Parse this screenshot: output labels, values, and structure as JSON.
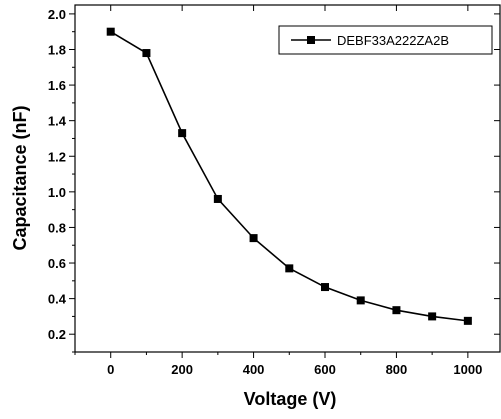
{
  "chart_data": {
    "type": "line",
    "title": "",
    "xlabel": "Voltage (V)",
    "ylabel": "Capacitance (nF)",
    "xlim": [
      -100,
      1090
    ],
    "ylim": [
      0.1,
      2.05
    ],
    "x_ticks": [
      "0",
      "200",
      "400",
      "600",
      "800",
      "1000"
    ],
    "y_ticks": [
      "0.2",
      "0.4",
      "0.6",
      "0.8",
      "1.0",
      "1.2",
      "1.4",
      "1.6",
      "1.8",
      "2.0"
    ],
    "grid": false,
    "legend_position": "top-right",
    "series": [
      {
        "name": "DEBF33A222ZA2B",
        "color": "#000000",
        "marker": "square",
        "x": [
          0,
          100,
          200,
          300,
          400,
          500,
          600,
          700,
          800,
          900,
          1000
        ],
        "y": [
          1.9,
          1.78,
          1.33,
          0.96,
          0.74,
          0.57,
          0.465,
          0.39,
          0.335,
          0.3,
          0.275
        ]
      }
    ]
  }
}
